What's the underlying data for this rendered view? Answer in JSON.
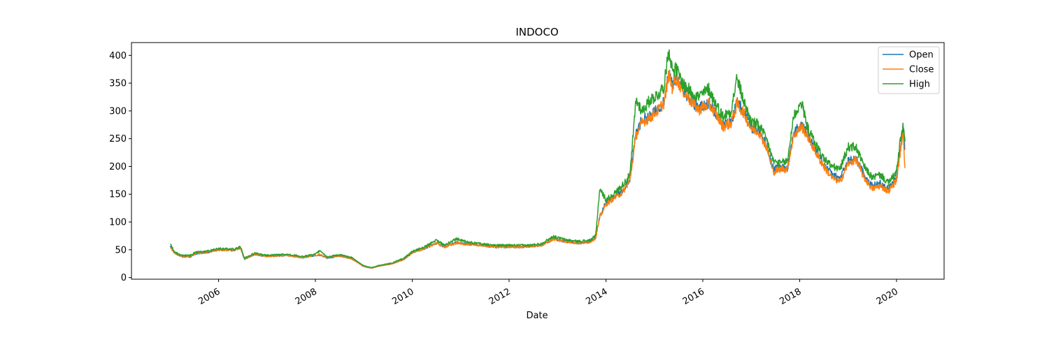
{
  "chart_data": {
    "type": "line",
    "title": "INDOCO",
    "xlabel": "Date",
    "ylabel": "",
    "xlim": [
      "2004-03-15",
      "2020-12-25"
    ],
    "ylim": [
      -3,
      423
    ],
    "x_ticks": [
      "2006",
      "2008",
      "2010",
      "2012",
      "2014",
      "2016",
      "2018",
      "2020"
    ],
    "y_ticks": [
      0,
      50,
      100,
      150,
      200,
      250,
      300,
      350,
      400
    ],
    "grid": false,
    "legend": "top-right",
    "colors": {
      "Open": "#1f77b4",
      "Close": "#ff7f0e",
      "High": "#2ca02c"
    },
    "series": [
      {
        "name": "Open",
        "x": [
          "2005-01-01",
          "2005-02-01",
          "2005-04-01",
          "2005-06-01",
          "2005-07-15",
          "2005-10-01",
          "2006-01-01",
          "2006-05-01",
          "2006-06-15",
          "2006-07-15",
          "2006-10-01",
          "2007-01-01",
          "2007-06-01",
          "2007-10-01",
          "2008-01-01",
          "2008-02-01",
          "2008-04-01",
          "2008-07-01",
          "2008-10-01",
          "2009-01-01",
          "2009-03-01",
          "2009-05-01",
          "2009-08-01",
          "2009-11-01",
          "2010-01-01",
          "2010-04-01",
          "2010-07-01",
          "2010-09-01",
          "2010-12-01",
          "2011-03-01",
          "2011-06-01",
          "2011-09-01",
          "2011-12-01",
          "2012-03-01",
          "2012-06-01",
          "2012-09-01",
          "2012-12-01",
          "2013-03-01",
          "2013-06-01",
          "2013-09-01",
          "2013-10-15",
          "2013-11-15",
          "2014-01-01",
          "2014-03-01",
          "2014-05-01",
          "2014-07-01",
          "2014-08-15",
          "2014-10-01",
          "2014-12-01",
          "2015-02-01",
          "2015-03-15",
          "2015-04-20",
          "2015-05-15",
          "2015-06-15",
          "2015-08-01",
          "2015-10-01",
          "2015-12-01",
          "2016-02-15",
          "2016-04-01",
          "2016-06-01",
          "2016-08-01",
          "2016-09-15",
          "2016-11-01",
          "2017-01-01",
          "2017-03-01",
          "2017-05-01",
          "2017-06-15",
          "2017-08-01",
          "2017-10-01",
          "2017-11-15",
          "2018-01-15",
          "2018-03-01",
          "2018-05-01",
          "2018-07-01",
          "2018-09-01",
          "2018-11-01",
          "2019-01-01",
          "2019-03-01",
          "2019-05-01",
          "2019-07-01",
          "2019-09-01",
          "2019-11-01",
          "2020-01-01",
          "2020-02-01",
          "2020-02-20",
          "2020-03-05"
        ],
        "values": [
          58,
          44,
          38,
          37,
          43,
          45,
          50,
          49,
          54,
          33,
          42,
          38,
          40,
          36,
          40,
          41,
          35,
          39,
          34,
          20,
          17,
          21,
          25,
          33,
          45,
          52,
          62,
          55,
          63,
          60,
          59,
          55,
          55,
          55,
          56,
          58,
          70,
          65,
          62,
          64,
          72,
          110,
          135,
          145,
          155,
          178,
          260,
          285,
          290,
          305,
          320,
          370,
          345,
          360,
          340,
          320,
          305,
          315,
          300,
          275,
          280,
          315,
          300,
          270,
          265,
          235,
          195,
          198,
          198,
          260,
          275,
          258,
          230,
          205,
          185,
          178,
          210,
          215,
          185,
          165,
          170,
          160,
          180,
          235,
          270,
          230
        ]
      },
      {
        "name": "Close",
        "x": [
          "2005-01-01",
          "2005-02-01",
          "2005-04-01",
          "2005-06-01",
          "2005-07-15",
          "2005-10-01",
          "2006-01-01",
          "2006-05-01",
          "2006-06-15",
          "2006-07-15",
          "2006-10-01",
          "2007-01-01",
          "2007-06-01",
          "2007-10-01",
          "2008-01-01",
          "2008-02-01",
          "2008-04-01",
          "2008-07-01",
          "2008-10-01",
          "2009-01-01",
          "2009-03-01",
          "2009-05-01",
          "2009-08-01",
          "2009-11-01",
          "2010-01-01",
          "2010-04-01",
          "2010-07-01",
          "2010-09-01",
          "2010-12-01",
          "2011-03-01",
          "2011-06-01",
          "2011-09-01",
          "2011-12-01",
          "2012-03-01",
          "2012-06-01",
          "2012-09-01",
          "2012-12-01",
          "2013-03-01",
          "2013-06-01",
          "2013-09-01",
          "2013-10-15",
          "2013-11-15",
          "2014-01-01",
          "2014-03-01",
          "2014-05-01",
          "2014-07-01",
          "2014-08-15",
          "2014-10-01",
          "2014-12-01",
          "2015-02-01",
          "2015-03-15",
          "2015-04-20",
          "2015-05-15",
          "2015-06-15",
          "2015-08-01",
          "2015-10-01",
          "2015-12-01",
          "2016-02-15",
          "2016-04-01",
          "2016-06-01",
          "2016-08-01",
          "2016-09-15",
          "2016-11-01",
          "2017-01-01",
          "2017-03-01",
          "2017-05-01",
          "2017-06-15",
          "2017-08-01",
          "2017-10-01",
          "2017-11-15",
          "2018-01-15",
          "2018-03-01",
          "2018-05-01",
          "2018-07-01",
          "2018-09-01",
          "2018-11-01",
          "2019-01-01",
          "2019-03-01",
          "2019-05-01",
          "2019-07-01",
          "2019-09-01",
          "2019-11-01",
          "2020-01-01",
          "2020-02-01",
          "2020-02-20",
          "2020-03-05"
        ],
        "values": [
          55,
          44,
          38,
          38,
          44,
          45,
          50,
          49,
          53,
          34,
          42,
          38,
          40,
          36,
          40,
          42,
          36,
          39,
          34,
          20,
          17,
          21,
          25,
          33,
          45,
          52,
          62,
          55,
          62,
          60,
          58,
          55,
          55,
          55,
          56,
          58,
          69,
          65,
          62,
          64,
          71,
          108,
          132,
          143,
          152,
          175,
          255,
          280,
          288,
          302,
          315,
          365,
          342,
          358,
          338,
          318,
          302,
          312,
          298,
          272,
          278,
          312,
          298,
          268,
          262,
          232,
          190,
          195,
          196,
          255,
          272,
          255,
          226,
          200,
          180,
          172,
          205,
          212,
          180,
          160,
          165,
          155,
          175,
          230,
          265,
          197
        ]
      },
      {
        "name": "High",
        "x": [
          "2005-01-01",
          "2005-02-01",
          "2005-04-01",
          "2005-06-01",
          "2005-07-15",
          "2005-10-01",
          "2006-01-01",
          "2006-05-01",
          "2006-06-15",
          "2006-07-15",
          "2006-10-01",
          "2007-01-01",
          "2007-06-01",
          "2007-10-01",
          "2008-01-01",
          "2008-02-01",
          "2008-04-01",
          "2008-07-01",
          "2008-10-01",
          "2009-01-01",
          "2009-03-01",
          "2009-05-01",
          "2009-08-01",
          "2009-11-01",
          "2010-01-01",
          "2010-04-01",
          "2010-07-01",
          "2010-09-01",
          "2010-12-01",
          "2011-03-01",
          "2011-06-01",
          "2011-09-01",
          "2011-12-01",
          "2012-03-01",
          "2012-06-01",
          "2012-09-01",
          "2012-12-01",
          "2013-03-01",
          "2013-06-01",
          "2013-09-01",
          "2013-10-15",
          "2013-11-15",
          "2014-01-01",
          "2014-03-01",
          "2014-05-01",
          "2014-07-01",
          "2014-08-15",
          "2014-10-01",
          "2014-12-01",
          "2015-02-01",
          "2015-03-15",
          "2015-04-20",
          "2015-05-15",
          "2015-06-15",
          "2015-08-01",
          "2015-10-01",
          "2015-12-01",
          "2016-02-15",
          "2016-04-01",
          "2016-06-01",
          "2016-08-01",
          "2016-09-15",
          "2016-11-01",
          "2017-01-01",
          "2017-03-01",
          "2017-05-01",
          "2017-06-15",
          "2017-08-01",
          "2017-10-01",
          "2017-11-15",
          "2018-01-15",
          "2018-03-01",
          "2018-05-01",
          "2018-07-01",
          "2018-09-01",
          "2018-11-01",
          "2019-01-01",
          "2019-03-01",
          "2019-05-01",
          "2019-07-01",
          "2019-09-01",
          "2019-11-01",
          "2020-01-01",
          "2020-02-01",
          "2020-02-20",
          "2020-03-05"
        ],
        "values": [
          62,
          46,
          40,
          40,
          46,
          47,
          52,
          51,
          56,
          35,
          44,
          40,
          42,
          38,
          42,
          48,
          37,
          41,
          36,
          21,
          18,
          22,
          26,
          35,
          47,
          55,
          68,
          58,
          70,
          63,
          61,
          58,
          58,
          58,
          58,
          61,
          74,
          68,
          65,
          67,
          75,
          160,
          140,
          150,
          165,
          185,
          320,
          300,
          320,
          330,
          345,
          412,
          375,
          375,
          350,
          335,
          325,
          340,
          315,
          290,
          300,
          360,
          320,
          280,
          275,
          245,
          210,
          205,
          210,
          290,
          315,
          270,
          240,
          215,
          200,
          195,
          235,
          235,
          200,
          180,
          185,
          170,
          190,
          250,
          273,
          245
        ]
      }
    ]
  }
}
